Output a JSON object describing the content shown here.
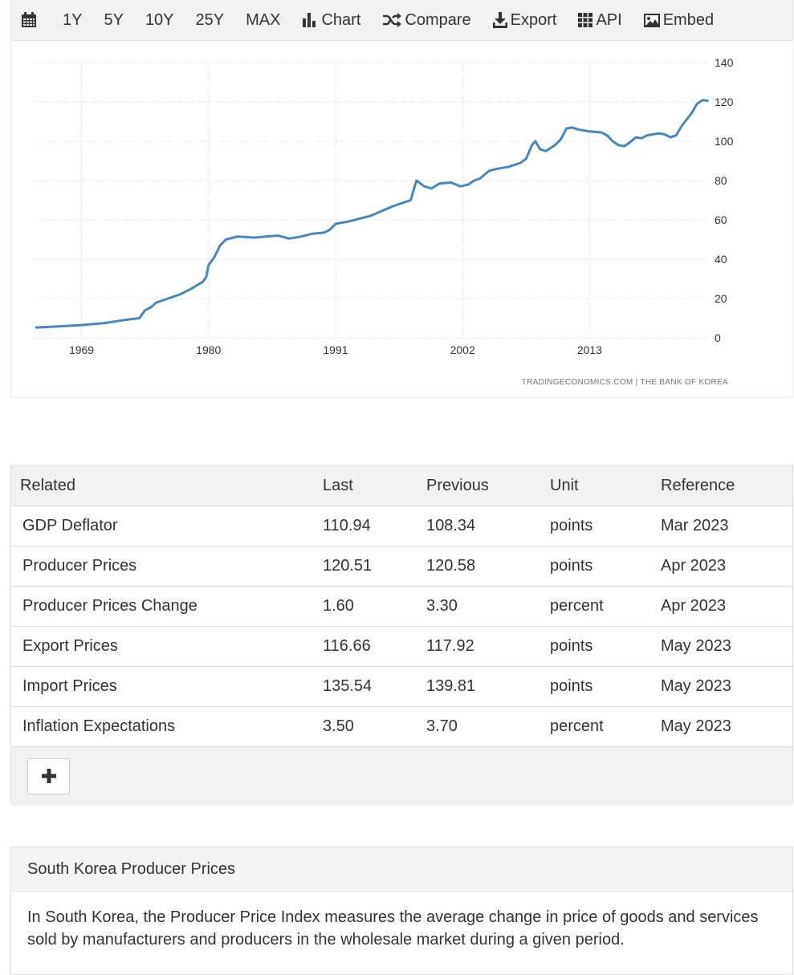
{
  "toolbar": {
    "calendar_icon": "calendar-icon",
    "ranges": [
      "1Y",
      "5Y",
      "10Y",
      "25Y",
      "MAX"
    ],
    "chart_label": "Chart",
    "compare_label": "Compare",
    "export_label": "Export",
    "api_label": "API",
    "embed_label": "Embed"
  },
  "chart": {
    "credit": "TRADINGECONOMICS.COM  |  THE BANK OF KOREA",
    "line_color": "#4b86b7"
  },
  "chart_data": {
    "type": "line",
    "title": "",
    "xlabel": "",
    "ylabel": "",
    "x_ticks": [
      "1969",
      "1980",
      "1991",
      "2002",
      "2013"
    ],
    "y_ticks": [
      "0",
      "20",
      "40",
      "60",
      "80",
      "100",
      "120",
      "140"
    ],
    "ylim": [
      0,
      140
    ],
    "xlim": [
      1965,
      2023.4
    ],
    "grid": true,
    "series": [
      {
        "values": [
          [
            1965.0,
            5.2
          ],
          [
            1967.0,
            5.8
          ],
          [
            1969.0,
            6.5
          ],
          [
            1971.0,
            7.5
          ],
          [
            1973.0,
            9.3
          ],
          [
            1974.0,
            10.0
          ],
          [
            1974.5,
            14.0
          ],
          [
            1975.0,
            15.5
          ],
          [
            1975.5,
            18.0
          ],
          [
            1976.5,
            20.0
          ],
          [
            1977.5,
            22.0
          ],
          [
            1978.5,
            25.0
          ],
          [
            1979.5,
            28.5
          ],
          [
            1979.8,
            31.0
          ],
          [
            1980.0,
            37.0
          ],
          [
            1980.5,
            41.0
          ],
          [
            1981.0,
            47.0
          ],
          [
            1981.5,
            50.0
          ],
          [
            1982.5,
            51.5
          ],
          [
            1984.0,
            51.0
          ],
          [
            1985.0,
            51.5
          ],
          [
            1986.0,
            52.0
          ],
          [
            1987.0,
            50.5
          ],
          [
            1988.0,
            51.5
          ],
          [
            1989.0,
            53.0
          ],
          [
            1990.0,
            53.5
          ],
          [
            1990.5,
            55.0
          ],
          [
            1991.0,
            58.0
          ],
          [
            1992.0,
            59.0
          ],
          [
            1993.0,
            60.5
          ],
          [
            1994.0,
            62.0
          ],
          [
            1995.0,
            64.5
          ],
          [
            1996.0,
            67.0
          ],
          [
            1997.0,
            69.0
          ],
          [
            1997.5,
            70.0
          ],
          [
            1998.0,
            80.0
          ],
          [
            1998.7,
            77.0
          ],
          [
            1999.3,
            76.0
          ],
          [
            2000.0,
            78.5
          ],
          [
            2001.0,
            79.0
          ],
          [
            2001.8,
            77.0
          ],
          [
            2002.5,
            78.0
          ],
          [
            2003.0,
            80.0
          ],
          [
            2003.5,
            81.0
          ],
          [
            2004.3,
            85.0
          ],
          [
            2005.0,
            86.0
          ],
          [
            2006.0,
            87.0
          ],
          [
            2007.0,
            89.0
          ],
          [
            2007.5,
            91.0
          ],
          [
            2008.0,
            98.0
          ],
          [
            2008.3,
            100.0
          ],
          [
            2008.7,
            96.0
          ],
          [
            2009.2,
            95.0
          ],
          [
            2010.0,
            98.0
          ],
          [
            2010.5,
            101.0
          ],
          [
            2011.0,
            106.5
          ],
          [
            2011.5,
            107.0
          ],
          [
            2012.0,
            106.0
          ],
          [
            2013.0,
            105.0
          ],
          [
            2014.0,
            104.5
          ],
          [
            2014.5,
            103.0
          ],
          [
            2015.0,
            100.0
          ],
          [
            2015.5,
            98.0
          ],
          [
            2016.0,
            97.5
          ],
          [
            2016.5,
            99.5
          ],
          [
            2017.0,
            102.0
          ],
          [
            2017.5,
            101.5
          ],
          [
            2018.0,
            103.0
          ],
          [
            2019.0,
            104.0
          ],
          [
            2019.5,
            103.5
          ],
          [
            2020.0,
            102.0
          ],
          [
            2020.5,
            103.0
          ],
          [
            2021.0,
            108.0
          ],
          [
            2021.8,
            114.0
          ],
          [
            2022.3,
            119.0
          ],
          [
            2022.8,
            121.0
          ],
          [
            2023.3,
            120.5
          ]
        ]
      }
    ]
  },
  "related": {
    "headers": [
      "Related",
      "Last",
      "Previous",
      "Unit",
      "Reference"
    ],
    "rows": [
      [
        "GDP Deflator",
        "110.94",
        "108.34",
        "points",
        "Mar 2023"
      ],
      [
        "Producer Prices",
        "120.51",
        "120.58",
        "points",
        "Apr 2023"
      ],
      [
        "Producer Prices Change",
        "1.60",
        "3.30",
        "percent",
        "Apr 2023"
      ],
      [
        "Export Prices",
        "116.66",
        "117.92",
        "points",
        "May 2023"
      ],
      [
        "Import Prices",
        "135.54",
        "139.81",
        "points",
        "May 2023"
      ],
      [
        "Inflation Expectations",
        "3.50",
        "3.70",
        "percent",
        "May 2023"
      ]
    ],
    "add_icon": "plus-icon"
  },
  "description": {
    "title": "South Korea Producer Prices",
    "text": "In South Korea, the Producer Price Index measures the average change in price of goods and services sold by manufacturers and producers in the wholesale market during a given period."
  }
}
